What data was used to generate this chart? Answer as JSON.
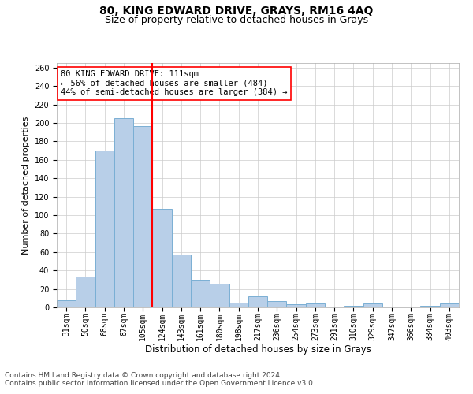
{
  "title": "80, KING EDWARD DRIVE, GRAYS, RM16 4AQ",
  "subtitle": "Size of property relative to detached houses in Grays",
  "xlabel": "Distribution of detached houses by size in Grays",
  "ylabel": "Number of detached properties",
  "categories": [
    "31sqm",
    "50sqm",
    "68sqm",
    "87sqm",
    "105sqm",
    "124sqm",
    "143sqm",
    "161sqm",
    "180sqm",
    "198sqm",
    "217sqm",
    "236sqm",
    "254sqm",
    "273sqm",
    "291sqm",
    "310sqm",
    "329sqm",
    "347sqm",
    "366sqm",
    "384sqm",
    "403sqm"
  ],
  "values": [
    8,
    33,
    170,
    205,
    197,
    107,
    57,
    30,
    26,
    5,
    12,
    7,
    3,
    4,
    0,
    2,
    4,
    0,
    0,
    2,
    4
  ],
  "bar_color": "#b8cfe8",
  "bar_edge_color": "#7aafd4",
  "vline_x": 4.5,
  "vline_color": "red",
  "annotation_text": "80 KING EDWARD DRIVE: 111sqm\n← 56% of detached houses are smaller (484)\n44% of semi-detached houses are larger (384) →",
  "annotation_box_color": "white",
  "annotation_box_edge": "red",
  "ylim": [
    0,
    265
  ],
  "yticks": [
    0,
    20,
    40,
    60,
    80,
    100,
    120,
    140,
    160,
    180,
    200,
    220,
    240,
    260
  ],
  "footer1": "Contains HM Land Registry data © Crown copyright and database right 2024.",
  "footer2": "Contains public sector information licensed under the Open Government Licence v3.0.",
  "title_fontsize": 10,
  "subtitle_fontsize": 9,
  "tick_fontsize": 7,
  "ylabel_fontsize": 8,
  "xlabel_fontsize": 8.5,
  "annotation_fontsize": 7.5,
  "footer_fontsize": 6.5
}
